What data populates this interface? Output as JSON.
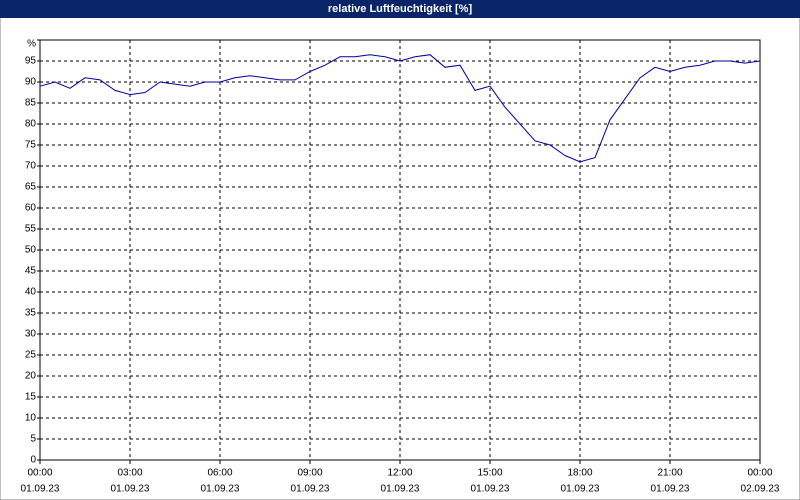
{
  "chart_data": {
    "type": "line",
    "title": "relative Luftfeuchtigkeit [%]",
    "x": [
      0,
      0.5,
      1,
      1.5,
      2,
      2.5,
      3,
      3.5,
      4,
      4.5,
      5,
      5.5,
      6,
      6.5,
      7,
      7.5,
      8,
      8.5,
      9,
      9.5,
      10,
      10.5,
      11,
      11.5,
      12,
      12.5,
      13,
      13.5,
      14,
      14.5,
      15,
      15.5,
      16,
      16.5,
      17,
      17.5,
      18,
      18.5,
      19,
      19.5,
      20,
      20.5,
      21,
      21.5,
      22,
      22.5,
      23,
      23.5,
      24
    ],
    "series": [
      {
        "name": "relative Luftfeuchtigkeit",
        "color": "#0000a0",
        "values": [
          89,
          90,
          88.5,
          91,
          90.5,
          88,
          87,
          87.5,
          90,
          89.5,
          89,
          90,
          90,
          91,
          91.5,
          91,
          90.5,
          90.5,
          92.5,
          94,
          96,
          96,
          96.5,
          96,
          95,
          96,
          96.5,
          93.5,
          94,
          88,
          89,
          84,
          80,
          76,
          75,
          72.5,
          71,
          72,
          81,
          86,
          91,
          93.5,
          92.5,
          93.5,
          94,
          95,
          95,
          94.5,
          95
        ]
      }
    ],
    "xlim": [
      0,
      24
    ],
    "xticks": [
      {
        "value": 0,
        "label": "00:00",
        "date": "01.09.23"
      },
      {
        "value": 3,
        "label": "03:00",
        "date": "01.09.23"
      },
      {
        "value": 6,
        "label": "06:00",
        "date": "01.09.23"
      },
      {
        "value": 9,
        "label": "09:00",
        "date": "01.09.23"
      },
      {
        "value": 12,
        "label": "12:00",
        "date": "01.09.23"
      },
      {
        "value": 15,
        "label": "15:00",
        "date": "01.09.23"
      },
      {
        "value": 18,
        "label": "18:00",
        "date": "01.09.23"
      },
      {
        "value": 21,
        "label": "21:00",
        "date": "01.09.23"
      },
      {
        "value": 24,
        "label": "00:00",
        "date": "02.09.23"
      }
    ],
    "ylim": [
      0,
      100
    ],
    "yticks": [
      0,
      5,
      10,
      15,
      20,
      25,
      30,
      35,
      40,
      45,
      50,
      55,
      60,
      65,
      70,
      75,
      80,
      85,
      90,
      95,
      {
        "value": 100,
        "label": "%"
      }
    ],
    "grid": true
  }
}
